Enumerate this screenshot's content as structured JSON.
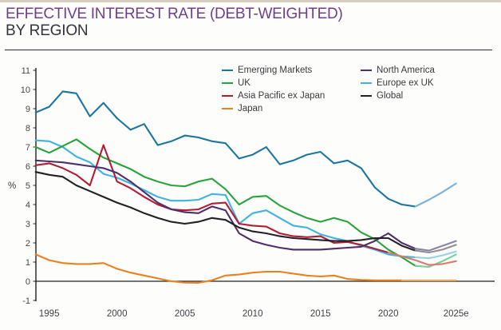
{
  "page": {
    "title_line1": "EFFECTIVE INTEREST RATE (DEBT-WEIGHTED)",
    "title_line2": "BY REGION",
    "title_color": "#6e3f91",
    "subtitle_color": "#34333e"
  },
  "chart_data": {
    "type": "line",
    "title": "Effective interest rate (debt-weighted) by region",
    "ylabel": "%",
    "xlabel": "",
    "grid": false,
    "legend_position": "top-inside-two-columns",
    "ylim": [
      -1,
      11
    ],
    "y_ticks": [
      11,
      10,
      9,
      8,
      7,
      6,
      5,
      4,
      3,
      2,
      1,
      0,
      -1
    ],
    "x_tick_labels": [
      "1995",
      "2000",
      "2005",
      "2010",
      "2015",
      "2020",
      "2025e"
    ],
    "x_tick_years": [
      1995,
      2000,
      2005,
      2010,
      2015,
      2020,
      2025
    ],
    "x": [
      1994,
      1995,
      1996,
      1997,
      1998,
      1999,
      2000,
      2001,
      2002,
      2003,
      2004,
      2005,
      2006,
      2007,
      2008,
      2009,
      2010,
      2011,
      2012,
      2013,
      2014,
      2015,
      2016,
      2017,
      2018,
      2019,
      2020,
      2021,
      2022,
      2023,
      2024,
      2025
    ],
    "note": "lighter line segments toward 2025e are estimates",
    "series": [
      {
        "name": "Emerging Markets",
        "color": "#1b75a0",
        "estimate_color": "#79b1d3",
        "estimate_from_year": 2022,
        "values": [
          8.8,
          9.1,
          9.9,
          9.8,
          8.6,
          9.3,
          8.5,
          7.9,
          8.2,
          7.1,
          7.3,
          7.6,
          7.5,
          7.3,
          7.2,
          6.4,
          6.6,
          7.0,
          6.1,
          6.3,
          6.6,
          6.75,
          6.15,
          6.3,
          5.9,
          4.9,
          4.3,
          4.0,
          3.9,
          4.25,
          4.65,
          5.1
        ]
      },
      {
        "name": "UK",
        "color": "#28a33c",
        "estimate_color": "#7bcd99",
        "estimate_from_year": 2022,
        "values": [
          7.0,
          6.7,
          7.05,
          7.4,
          6.9,
          6.45,
          6.15,
          5.85,
          5.45,
          5.2,
          5.0,
          4.95,
          5.2,
          5.35,
          4.8,
          4.0,
          4.4,
          4.45,
          3.95,
          3.6,
          3.3,
          3.1,
          3.3,
          3.1,
          2.55,
          2.2,
          1.65,
          1.25,
          0.8,
          0.75,
          1.05,
          1.4
        ]
      },
      {
        "name": "Asia Pacific ex Japan",
        "color": "#b01e35",
        "estimate_color": "#d97c6e",
        "estimate_from_year": 2020,
        "values": [
          6.05,
          6.15,
          5.9,
          5.55,
          5.0,
          7.1,
          5.2,
          4.85,
          4.4,
          4.0,
          3.75,
          3.7,
          3.75,
          4.05,
          4.1,
          3.0,
          2.9,
          2.85,
          2.5,
          2.35,
          2.3,
          2.35,
          2.0,
          2.05,
          1.9,
          1.7,
          1.5,
          1.3,
          1.1,
          0.85,
          0.9,
          1.05
        ]
      },
      {
        "name": "Japan",
        "color": "#e8821e",
        "estimate_color": "#f0af67",
        "estimate_from_year": 2021,
        "values": [
          1.4,
          1.1,
          0.95,
          0.9,
          0.9,
          0.95,
          0.65,
          0.45,
          0.3,
          0.15,
          0.0,
          -0.07,
          -0.08,
          0.05,
          0.3,
          0.35,
          0.45,
          0.5,
          0.5,
          0.4,
          0.3,
          0.25,
          0.3,
          0.12,
          0.07,
          0.05,
          0.05,
          0.05,
          0.05,
          0.05,
          0.05,
          0.05
        ]
      },
      {
        "name": "North America",
        "color": "#4e2f6b",
        "estimate_color": "#8d83a5",
        "estimate_from_year": 2022,
        "values": [
          6.3,
          6.25,
          6.2,
          6.1,
          6.0,
          5.9,
          5.65,
          5.2,
          4.65,
          4.1,
          3.75,
          3.6,
          3.55,
          3.9,
          3.7,
          2.5,
          2.1,
          1.9,
          1.75,
          1.65,
          1.65,
          1.65,
          1.7,
          1.75,
          1.8,
          2.1,
          2.5,
          2.0,
          1.7,
          1.6,
          1.85,
          2.1
        ]
      },
      {
        "name": "Europe ex UK",
        "color": "#3fb2e0",
        "estimate_color": "#96d1ea",
        "estimate_from_year": 2022,
        "values": [
          7.35,
          7.3,
          7.0,
          6.5,
          6.2,
          5.6,
          5.4,
          5.1,
          4.75,
          4.4,
          4.2,
          4.2,
          4.25,
          4.55,
          4.5,
          3.0,
          3.55,
          3.7,
          3.3,
          2.9,
          2.8,
          2.45,
          2.25,
          2.1,
          1.85,
          1.65,
          1.4,
          1.3,
          1.25,
          1.2,
          1.35,
          1.55
        ]
      },
      {
        "name": "Global",
        "color": "#232026",
        "estimate_color": "#909090",
        "estimate_from_year": 2022,
        "values": [
          5.7,
          5.55,
          5.45,
          5.0,
          4.7,
          4.4,
          4.1,
          3.85,
          3.55,
          3.3,
          3.1,
          3.0,
          3.1,
          3.3,
          3.2,
          2.8,
          2.6,
          2.5,
          2.35,
          2.25,
          2.2,
          2.15,
          2.1,
          2.1,
          2.15,
          2.25,
          2.25,
          1.85,
          1.6,
          1.5,
          1.65,
          1.9
        ]
      }
    ]
  }
}
